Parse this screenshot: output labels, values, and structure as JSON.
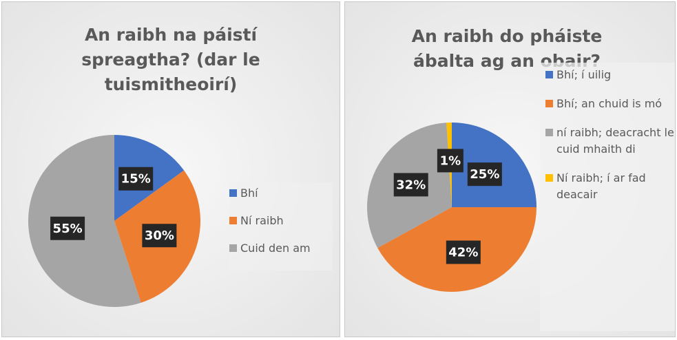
{
  "chart_data": [
    {
      "type": "pie",
      "title": "An raibh na páistí spreagtha? (dar le tuismitheoirí)",
      "categories": [
        "Bhí",
        "Ní raibh",
        "Cuid den am"
      ],
      "values": [
        15,
        30,
        55
      ],
      "value_labels": [
        "15%",
        "30%",
        "55%"
      ],
      "colors": [
        "#4472c4",
        "#ed7d31",
        "#a5a5a5"
      ],
      "legend": "right"
    },
    {
      "type": "pie",
      "title": "An raibh do pháiste ábalta ag an obair?",
      "categories": [
        "Bhí; í uilig",
        "Bhí; an chuid is mó",
        "ní raibh; deacracht le cuid mhaith di",
        "Ní raibh; í ar fad deacair"
      ],
      "values": [
        25,
        42,
        32,
        1
      ],
      "value_labels": [
        "25%",
        "42%",
        "32%",
        "1%"
      ],
      "colors": [
        "#4472c4",
        "#ed7d31",
        "#a5a5a5",
        "#ffc000"
      ],
      "legend": "right"
    }
  ]
}
